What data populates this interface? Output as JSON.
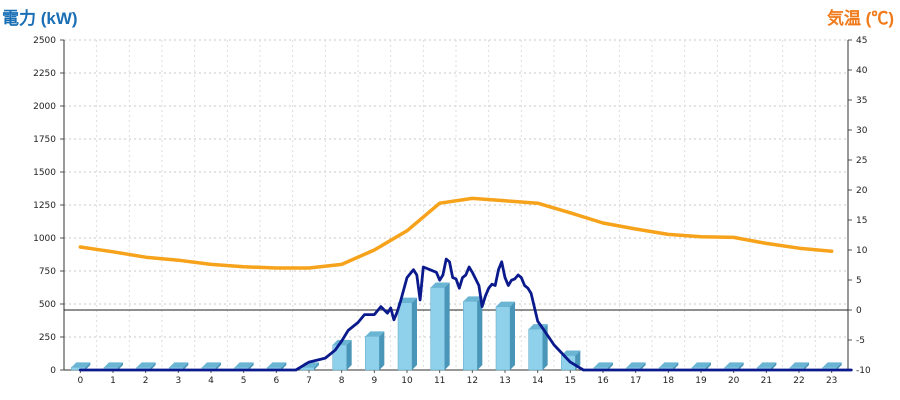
{
  "chart_data": {
    "type": "bar",
    "left_axis_label": "電力 (kW)",
    "right_axis_label": "気温 (℃)",
    "categories": [
      "0",
      "1",
      "2",
      "3",
      "4",
      "5",
      "6",
      "7",
      "8",
      "9",
      "10",
      "11",
      "12",
      "13",
      "14",
      "15",
      "16",
      "17",
      "18",
      "19",
      "20",
      "21",
      "22",
      "23"
    ],
    "ylim_left": [
      0,
      2500
    ],
    "yticks_left": [
      0,
      250,
      500,
      750,
      1000,
      1250,
      1500,
      1750,
      2000,
      2250,
      2500
    ],
    "ylim_right": [
      -10,
      45
    ],
    "yticks_right": [
      -10,
      -5,
      0,
      5,
      10,
      15,
      20,
      25,
      30,
      35,
      40,
      45
    ],
    "grid": true,
    "series": [
      {
        "kind": "bar",
        "axis": "left",
        "color": "#7ec8e3",
        "values": [
          20,
          20,
          20,
          20,
          20,
          20,
          20,
          20,
          190,
          255,
          510,
          625,
          520,
          480,
          310,
          110,
          20,
          20,
          20,
          20,
          20,
          20,
          20,
          20
        ]
      },
      {
        "kind": "line",
        "axis": "left",
        "color": "#0a1a8c",
        "x": [
          0,
          6.6,
          7,
          7.5,
          7.8,
          8.0,
          8.2,
          8.5,
          8.7,
          9.0,
          9.2,
          9.4,
          9.5,
          9.6,
          9.7,
          9.8,
          10.0,
          10.2,
          10.3,
          10.4,
          10.5,
          10.7,
          10.9,
          11.0,
          11.1,
          11.2,
          11.3,
          11.4,
          11.5,
          11.6,
          11.7,
          11.8,
          11.9,
          12.0,
          12.1,
          12.2,
          12.3,
          12.4,
          12.5,
          12.6,
          12.7,
          12.8,
          12.9,
          13.0,
          13.1,
          13.2,
          13.3,
          13.4,
          13.5,
          13.6,
          13.7,
          13.8,
          14.0,
          14.2,
          14.5,
          15.0,
          15.4,
          23.6
        ],
        "values": [
          0,
          0,
          60,
          90,
          150,
          220,
          300,
          360,
          420,
          420,
          480,
          430,
          470,
          380,
          440,
          520,
          700,
          760,
          720,
          530,
          780,
          760,
          740,
          680,
          720,
          840,
          820,
          700,
          690,
          620,
          700,
          720,
          780,
          740,
          690,
          640,
          480,
          560,
          620,
          650,
          640,
          760,
          820,
          700,
          640,
          680,
          690,
          720,
          700,
          640,
          620,
          580,
          370,
          300,
          190,
          60,
          0,
          0
        ]
      },
      {
        "kind": "line",
        "axis": "right",
        "color": "#f7a21b",
        "x": [
          0,
          1,
          2,
          3,
          4,
          5,
          6,
          7,
          8,
          9,
          10,
          11,
          12,
          13,
          14,
          15,
          16,
          17,
          18,
          19,
          20,
          21,
          22,
          23
        ],
        "values": [
          10.5,
          9.7,
          8.8,
          8.3,
          7.6,
          7.2,
          7.0,
          7.0,
          7.6,
          10.0,
          13.2,
          17.8,
          18.6,
          18.2,
          17.8,
          16.2,
          14.5,
          13.5,
          12.6,
          12.2,
          12.1,
          11.1,
          10.3,
          9.8
        ]
      }
    ]
  }
}
